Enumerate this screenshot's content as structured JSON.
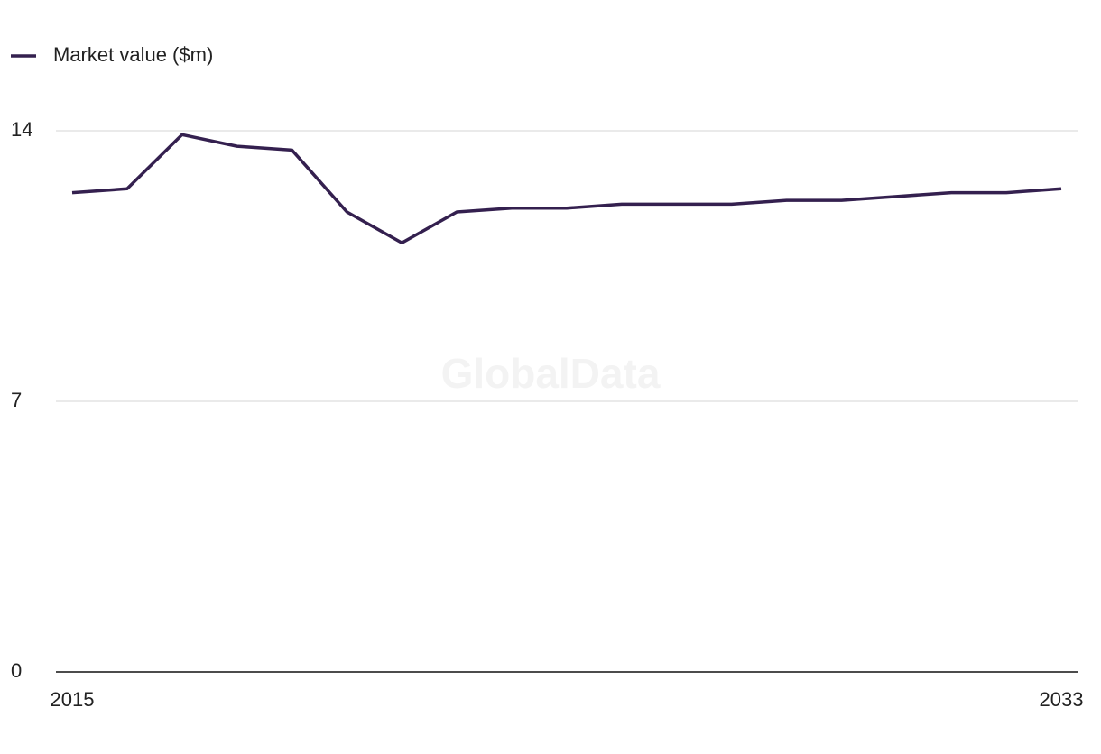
{
  "chart_data": {
    "type": "line",
    "watermark": "GlobalData",
    "x": [
      2015,
      2016,
      2017,
      2018,
      2019,
      2020,
      2021,
      2022,
      2023,
      2024,
      2025,
      2026,
      2027,
      2028,
      2029,
      2030,
      2031,
      2032,
      2033
    ],
    "xlim": [
      2015,
      2033
    ],
    "xticks": [
      2015,
      2033
    ],
    "series": [
      {
        "name": "Market value ($m)",
        "color": "#34204f",
        "values": [
          12.4,
          12.5,
          13.9,
          13.6,
          13.5,
          11.9,
          11.1,
          11.9,
          12.0,
          12.0,
          12.1,
          12.1,
          12.1,
          12.2,
          12.2,
          12.3,
          12.4,
          12.4,
          12.5
        ]
      }
    ],
    "ylim": [
      0,
      14
    ],
    "yticks": [
      0,
      7,
      14
    ],
    "grid": true
  }
}
